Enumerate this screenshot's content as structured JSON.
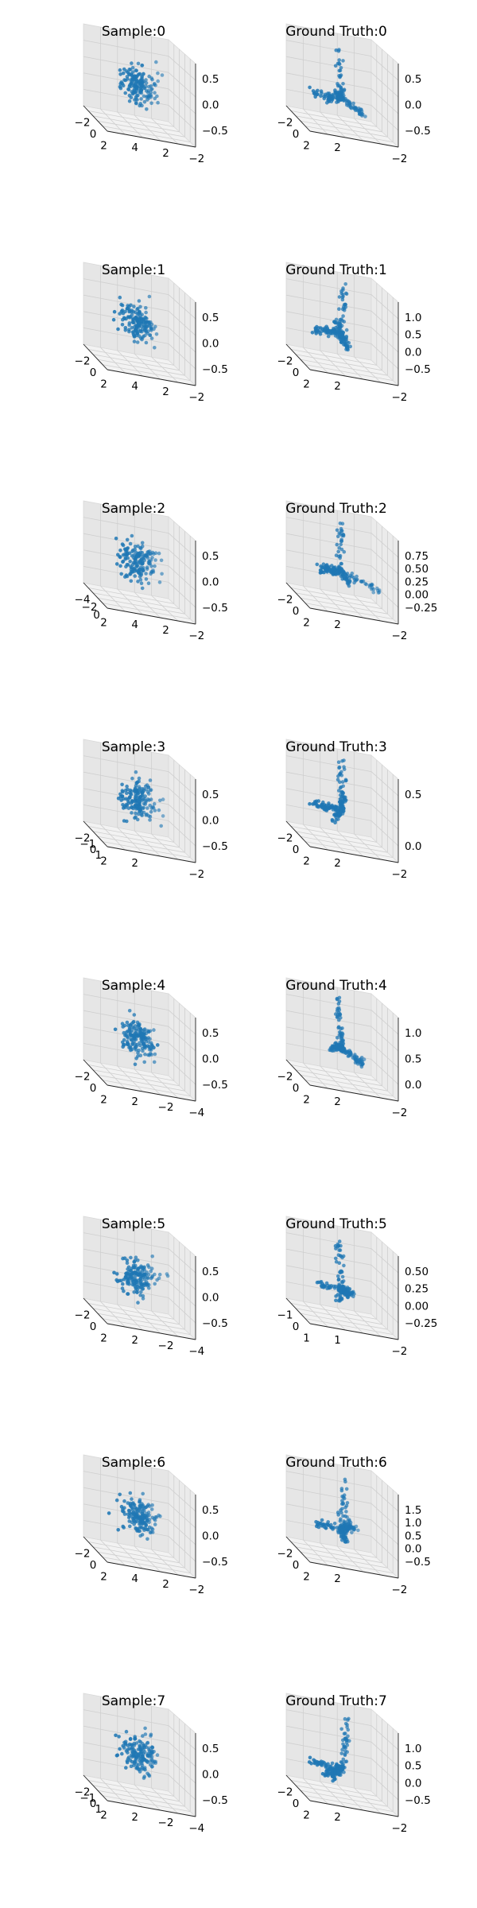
{
  "panels": [
    {
      "title": "Sample:0",
      "x_ticks": [
        "−2",
        "0",
        "2"
      ],
      "y_ticks": [
        "−2",
        "2",
        "4"
      ],
      "z_ticks": [
        "0.5",
        "0.0",
        "−0.5"
      ]
    },
    {
      "title": "Ground Truth:0",
      "x_ticks": [
        "−2",
        "0",
        "2"
      ],
      "y_ticks": [
        "−2",
        "2"
      ],
      "z_ticks": [
        "0.5",
        "0.0",
        "−0.5"
      ]
    },
    {
      "title": "Sample:1",
      "x_ticks": [
        "−2",
        "0",
        "2"
      ],
      "y_ticks": [
        "−2",
        "2",
        "4"
      ],
      "z_ticks": [
        "0.5",
        "0.0",
        "−0.5"
      ]
    },
    {
      "title": "Ground Truth:1",
      "x_ticks": [
        "−2",
        "0",
        "2"
      ],
      "y_ticks": [
        "−2",
        "2"
      ],
      "z_ticks": [
        "1.0",
        "0.5",
        "0.0",
        "−0.5"
      ]
    },
    {
      "title": "Sample:2",
      "x_ticks": [
        "−4",
        "−2",
        "0",
        "2"
      ],
      "y_ticks": [
        "−2",
        "2",
        "4"
      ],
      "z_ticks": [
        "0.5",
        "0.0",
        "−0.5"
      ]
    },
    {
      "title": "Ground Truth:2",
      "x_ticks": [
        "−2",
        "0",
        "2"
      ],
      "y_ticks": [
        "−2",
        "2"
      ],
      "z_ticks": [
        "0.75",
        "0.50",
        "0.25",
        "0.00",
        "−0.25"
      ]
    },
    {
      "title": "Sample:3",
      "x_ticks": [
        "−2",
        "−1",
        "0",
        "1",
        "2"
      ],
      "y_ticks": [
        "−2",
        "2"
      ],
      "z_ticks": [
        "0.5",
        "0.0",
        "−0.5"
      ]
    },
    {
      "title": "Ground Truth:3",
      "x_ticks": [
        "−2",
        "0",
        "2"
      ],
      "y_ticks": [
        "−2",
        "2"
      ],
      "z_ticks": [
        "0.5",
        "0.0"
      ]
    },
    {
      "title": "Sample:4",
      "x_ticks": [
        "−2",
        "0",
        "2"
      ],
      "y_ticks": [
        "−4",
        "−2",
        "2"
      ],
      "z_ticks": [
        "0.5",
        "0.0",
        "−0.5"
      ]
    },
    {
      "title": "Ground Truth:4",
      "x_ticks": [
        "−2",
        "0",
        "2"
      ],
      "y_ticks": [
        "−2",
        "2"
      ],
      "z_ticks": [
        "1.0",
        "0.5",
        "0.0"
      ]
    },
    {
      "title": "Sample:5",
      "x_ticks": [
        "−2",
        "0",
        "2"
      ],
      "y_ticks": [
        "−4",
        "−2",
        "2"
      ],
      "z_ticks": [
        "0.5",
        "0.0",
        "−0.5"
      ]
    },
    {
      "title": "Ground Truth:5",
      "x_ticks": [
        "−1",
        "0",
        "1"
      ],
      "y_ticks": [
        "−2",
        "1"
      ],
      "z_ticks": [
        "0.50",
        "0.25",
        "0.00",
        "−0.25"
      ]
    },
    {
      "title": "Sample:6",
      "x_ticks": [
        "−2",
        "0",
        "2"
      ],
      "y_ticks": [
        "−2",
        "2",
        "4"
      ],
      "z_ticks": [
        "0.5",
        "0.0",
        "−0.5"
      ]
    },
    {
      "title": "Ground Truth:6",
      "x_ticks": [
        "−2",
        "0",
        "2"
      ],
      "y_ticks": [
        "−2",
        "2"
      ],
      "z_ticks": [
        "1.5",
        "1.0",
        "0.5",
        "0.0",
        "−0.5"
      ]
    },
    {
      "title": "Sample:7",
      "x_ticks": [
        "−2",
        "−1",
        "0",
        "1",
        "2"
      ],
      "y_ticks": [
        "−4",
        "−2",
        "2"
      ],
      "z_ticks": [
        "0.5",
        "0.0",
        "−0.5"
      ]
    },
    {
      "title": "Ground Truth:7",
      "x_ticks": [
        "−2",
        "0",
        "2"
      ],
      "y_ticks": [
        "−2",
        "2"
      ],
      "z_ticks": [
        "1.0",
        "0.5",
        "0.0",
        "−0.5"
      ]
    }
  ],
  "chart_data": {
    "type": "scatter",
    "subtype": "3d-scatter-grid",
    "grid": "on",
    "marker_color": "#1f77b4",
    "pane_colors": [
      "#f2f2f2",
      "#e6e6e6",
      "#ebebeb"
    ],
    "panels": [
      {
        "title": "Sample:0",
        "xlim": [
          -2.5,
          2.5
        ],
        "ylim": [
          -2,
          4
        ],
        "zlim": [
          -0.8,
          0.8
        ]
      },
      {
        "title": "Ground Truth:0",
        "xlim": [
          -2.5,
          2.5
        ],
        "ylim": [
          -2,
          3
        ],
        "zlim": [
          -0.8,
          0.8
        ]
      },
      {
        "title": "Sample:1",
        "xlim": [
          -2.5,
          2.5
        ],
        "ylim": [
          -2,
          4
        ],
        "zlim": [
          -0.8,
          0.8
        ]
      },
      {
        "title": "Ground Truth:1",
        "xlim": [
          -2.5,
          2.5
        ],
        "ylim": [
          -2,
          3
        ],
        "zlim": [
          -0.7,
          1.2
        ]
      },
      {
        "title": "Sample:2",
        "xlim": [
          -4,
          2.5
        ],
        "ylim": [
          -2,
          4
        ],
        "zlim": [
          -0.8,
          0.8
        ]
      },
      {
        "title": "Ground Truth:2",
        "xlim": [
          -2.5,
          2.5
        ],
        "ylim": [
          -2,
          3
        ],
        "zlim": [
          -0.3,
          0.85
        ]
      },
      {
        "title": "Sample:3",
        "xlim": [
          -2,
          2.5
        ],
        "ylim": [
          -2,
          3
        ],
        "zlim": [
          -0.8,
          0.8
        ]
      },
      {
        "title": "Ground Truth:3",
        "xlim": [
          -2.5,
          2.5
        ],
        "ylim": [
          -2,
          3
        ],
        "zlim": [
          -0.5,
          0.8
        ]
      },
      {
        "title": "Sample:4",
        "xlim": [
          -2.5,
          2.5
        ],
        "ylim": [
          -4,
          3
        ],
        "zlim": [
          -0.8,
          0.8
        ]
      },
      {
        "title": "Ground Truth:4",
        "xlim": [
          -2.5,
          2.5
        ],
        "ylim": [
          -2,
          3
        ],
        "zlim": [
          -0.3,
          1.3
        ]
      },
      {
        "title": "Sample:5",
        "xlim": [
          -2.5,
          2.5
        ],
        "ylim": [
          -4,
          3
        ],
        "zlim": [
          -0.8,
          0.8
        ]
      },
      {
        "title": "Ground Truth:5",
        "xlim": [
          -1.5,
          1.5
        ],
        "ylim": [
          -2,
          1.5
        ],
        "zlim": [
          -0.4,
          0.6
        ]
      },
      {
        "title": "Sample:6",
        "xlim": [
          -2.5,
          2.5
        ],
        "ylim": [
          -2,
          4
        ],
        "zlim": [
          -0.8,
          0.8
        ]
      },
      {
        "title": "Ground Truth:6",
        "xlim": [
          -2.5,
          2.5
        ],
        "ylim": [
          -2,
          3
        ],
        "zlim": [
          -0.6,
          1.8
        ]
      },
      {
        "title": "Sample:7",
        "xlim": [
          -2.5,
          2.5
        ],
        "ylim": [
          -4,
          3
        ],
        "zlim": [
          -0.8,
          0.8
        ]
      },
      {
        "title": "Ground Truth:7",
        "xlim": [
          -2.5,
          2.5
        ],
        "ylim": [
          -2,
          3
        ],
        "zlim": [
          -0.7,
          1.5
        ]
      }
    ]
  }
}
